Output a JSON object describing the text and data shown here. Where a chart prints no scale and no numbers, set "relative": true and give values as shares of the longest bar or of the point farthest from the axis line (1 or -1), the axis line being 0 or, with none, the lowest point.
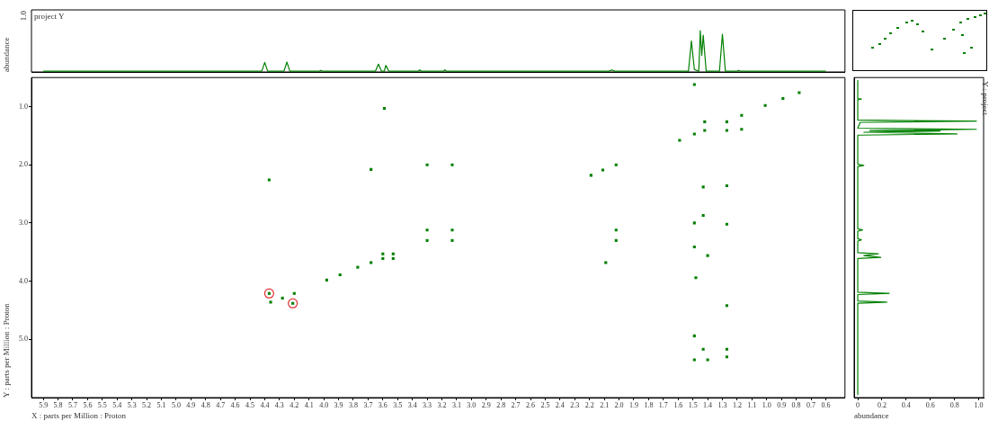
{
  "chart_data": [
    {
      "type": "line",
      "relative": true,
      "ylabel": "abundance",
      "annotations": [
        "project Y",
        "1.0"
      ],
      "xlim": [
        5.98,
        0.47
      ],
      "tick_labels": false,
      "series": [
        {
          "color": "#008000",
          "x": [
            5.9,
            4.42,
            4.4,
            4.38,
            4.27,
            4.25,
            4.23,
            4.03,
            4.02,
            4.01,
            3.65,
            3.63,
            3.61,
            3.59,
            3.58,
            3.56,
            3.36,
            3.35,
            3.34,
            3.19,
            3.18,
            3.17,
            2.07,
            2.05,
            2.03,
            1.53,
            1.51,
            1.49,
            1.46,
            1.45,
            1.44,
            1.43,
            1.41,
            1.32,
            1.3,
            1.28,
            1.2,
            1.19,
            1.18,
            0.6
          ],
          "values": [
            0.02,
            0.02,
            0.23,
            0.02,
            0.02,
            0.24,
            0.02,
            0.02,
            0.04,
            0.02,
            0.02,
            0.19,
            0.02,
            0.02,
            0.16,
            0.02,
            0.02,
            0.05,
            0.02,
            0.02,
            0.05,
            0.02,
            0.02,
            0.05,
            0.02,
            0.02,
            0.75,
            0.06,
            0.02,
            1.0,
            0.4,
            0.89,
            0.02,
            0.02,
            0.91,
            0.02,
            0.02,
            0.04,
            0.02,
            0.02
          ]
        }
      ]
    },
    {
      "type": "scatter",
      "xlabel": "X : parts per Million : Proton",
      "ylabel": "Y : parts per Million : Proton",
      "xlim": [
        5.98,
        0.47
      ],
      "ylim": [
        6.0,
        0.5
      ],
      "xticks": [
        5.9,
        5.8,
        5.7,
        5.6,
        5.5,
        5.4,
        5.3,
        5.2,
        5.1,
        {
          "value": 5,
          "label": "5.0"
        },
        4.9,
        4.8,
        4.7,
        4.6,
        4.5,
        4.4,
        4.3,
        4.2,
        4.1,
        {
          "value": 4,
          "label": "4.0"
        },
        3.9,
        3.8,
        3.7,
        3.6,
        3.5,
        3.4,
        3.3,
        3.2,
        3.1,
        {
          "value": 3,
          "label": "3.0"
        },
        2.9,
        2.8,
        2.7,
        2.6,
        2.5,
        2.4,
        2.3,
        2.2,
        2.1,
        {
          "value": 2,
          "label": "2.0"
        },
        1.9,
        1.8,
        1.7,
        1.6,
        1.5,
        1.4,
        1.3,
        1.2,
        1.1,
        {
          "value": 1,
          "label": "1.0"
        },
        0.9,
        0.8,
        0.7,
        0.6
      ],
      "yticks": [
        {
          "value": 1,
          "label": "1.0"
        },
        {
          "value": 2,
          "label": "2.0"
        },
        {
          "value": 3,
          "label": "3.0"
        },
        {
          "value": 4,
          "label": "4.0"
        },
        {
          "value": 5,
          "label": "5.0"
        }
      ],
      "series": [
        {
          "color": "#008000",
          "marker": "square",
          "x": [
            4.37,
            4.36,
            4.28,
            4.2,
            4.21,
            3.98,
            3.89,
            3.77,
            3.68,
            3.6,
            3.6,
            3.53,
            3.53,
            3.68,
            3.59,
            4.37,
            3.3,
            3.3,
            3.3,
            3.13,
            3.13,
            3.13,
            2.02,
            2.02,
            2.02,
            2.09,
            2.11,
            2.19,
            1.59,
            1.49,
            1.42,
            1.27,
            1.17,
            1.01,
            0.89,
            0.78,
            1.42,
            1.27,
            1.17,
            1.49,
            1.49,
            1.27,
            1.43,
            1.27,
            1.43,
            1.49,
            1.4,
            1.48,
            1.27,
            1.49,
            1.49,
            1.4,
            1.27,
            1.43,
            1.27
          ],
          "values": [
            4.21,
            4.36,
            4.29,
            4.21,
            4.38,
            3.98,
            3.89,
            3.76,
            3.68,
            3.53,
            3.61,
            3.53,
            3.61,
            2.08,
            1.03,
            2.26,
            2.0,
            3.12,
            3.3,
            2.0,
            3.12,
            3.3,
            2.0,
            3.12,
            3.3,
            3.68,
            2.09,
            2.18,
            1.58,
            1.47,
            1.41,
            1.26,
            1.15,
            0.98,
            0.86,
            0.76,
            1.26,
            1.41,
            1.39,
            0.62,
            3.0,
            3.02,
            2.38,
            2.36,
            2.87,
            3.41,
            3.56,
            3.94,
            4.42,
            4.94,
            5.35,
            5.35,
            5.3,
            5.17,
            5.17
          ]
        },
        {
          "color": "#e03030",
          "marker": "circle",
          "x": [
            4.37,
            4.21
          ],
          "values": [
            4.21,
            4.38
          ]
        }
      ]
    },
    {
      "type": "line",
      "orientation": "horizontal",
      "xlabel": "abundance",
      "annotations": [
        "Y : project"
      ],
      "xlim": [
        -0.03,
        1.04
      ],
      "ylim": [
        6.0,
        0.5
      ],
      "xticks": [
        0,
        0.2,
        0.4,
        0.6,
        0.8,
        {
          "value": 1,
          "label": "1.0"
        }
      ],
      "tick_labels": "x",
      "series": [
        {
          "color": "#008000",
          "x": [
            0.55,
            0.86,
            0.87,
            0.88,
            1.23,
            1.25,
            1.27,
            1.37,
            1.39,
            1.41,
            1.42,
            1.44,
            1.47,
            1.49,
            1.99,
            2.01,
            2.03,
            3.1,
            3.12,
            3.14,
            3.27,
            3.29,
            3.31,
            3.51,
            3.53,
            3.56,
            3.59,
            3.61,
            4.19,
            4.21,
            4.23,
            4.34,
            4.36,
            4.38,
            5.95
          ],
          "values": [
            0,
            0,
            0.03,
            0,
            0,
            0.98,
            0.02,
            0,
            0.98,
            0.1,
            0.68,
            0.05,
            0.82,
            0,
            0,
            0.05,
            0,
            0,
            0.04,
            0,
            0,
            0.03,
            0,
            0,
            0.17,
            0.05,
            0.19,
            0,
            0,
            0.26,
            0,
            0,
            0.24,
            0,
            0
          ]
        }
      ]
    }
  ]
}
